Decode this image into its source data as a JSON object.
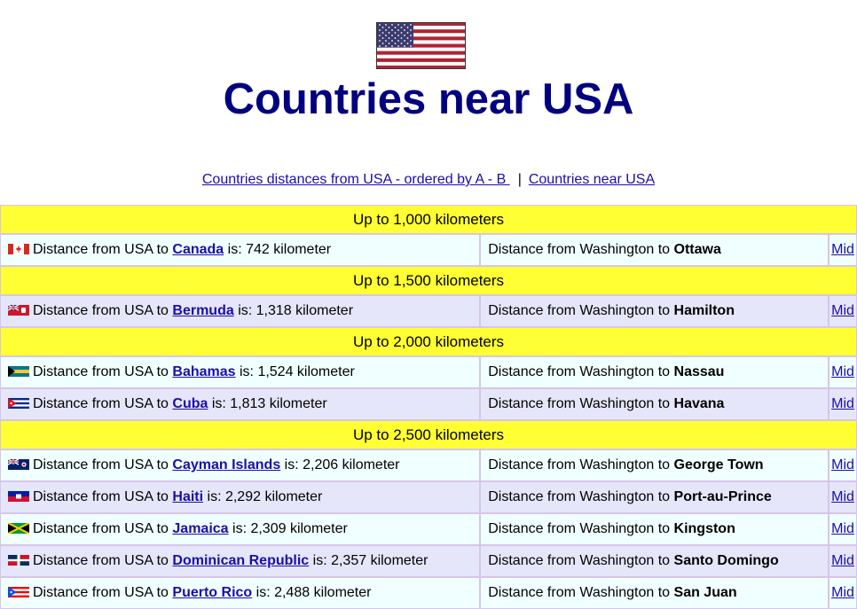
{
  "title": "Countries near USA",
  "nav": {
    "link_a_b": "Countries distances from USA - ordered by A - B ",
    "separator": "|",
    "link_near": "Countries near USA"
  },
  "labels": {
    "distance_prefix": "Distance from USA to ",
    "is": " is: ",
    "capital_prefix": "Distance from Washington to ",
    "mid": "Mid"
  },
  "groups": [
    {
      "header": "Up to 1,000 kilometers"
    },
    {
      "header": "Up to 1,500 kilometers"
    },
    {
      "header": "Up to 2,000 kilometers"
    },
    {
      "header": "Up to 2,500 kilometers"
    }
  ],
  "rows": [
    {
      "country": "Canada",
      "distance": "742 kilometer",
      "capital": "Ottawa",
      "flag": "canada-flag-icon"
    },
    {
      "country": "Bermuda",
      "distance": "1,318 kilometer",
      "capital": "Hamilton",
      "flag": "bermuda-flag-icon"
    },
    {
      "country": "Bahamas",
      "distance": "1,524 kilometer",
      "capital": "Nassau",
      "flag": "bahamas-flag-icon"
    },
    {
      "country": "Cuba",
      "distance": "1,813 kilometer",
      "capital": "Havana",
      "flag": "cuba-flag-icon"
    },
    {
      "country": "Cayman Islands",
      "distance": "2,206 kilometer",
      "capital": "George Town",
      "flag": "cayman-islands-flag-icon"
    },
    {
      "country": "Haiti",
      "distance": "2,292 kilometer",
      "capital": "Port-au-Prince",
      "flag": "haiti-flag-icon"
    },
    {
      "country": "Jamaica",
      "distance": "2,309 kilometer",
      "capital": "Kingston",
      "flag": "jamaica-flag-icon"
    },
    {
      "country": "Dominican Republic",
      "distance": "2,357 kilometer",
      "capital": "Santo Domingo",
      "flag": "dominican-republic-flag-icon"
    },
    {
      "country": "Puerto Rico",
      "distance": "2,488 kilometer",
      "capital": "San Juan",
      "flag": "puerto-rico-flag-icon"
    }
  ],
  "colors": {
    "title": "#000080",
    "header_bg": "#ffff33",
    "row_light": "#f0ffff",
    "row_dark": "#e6e6fa",
    "link": "#1a0dab"
  },
  "header_flag": "usa-flag-icon"
}
